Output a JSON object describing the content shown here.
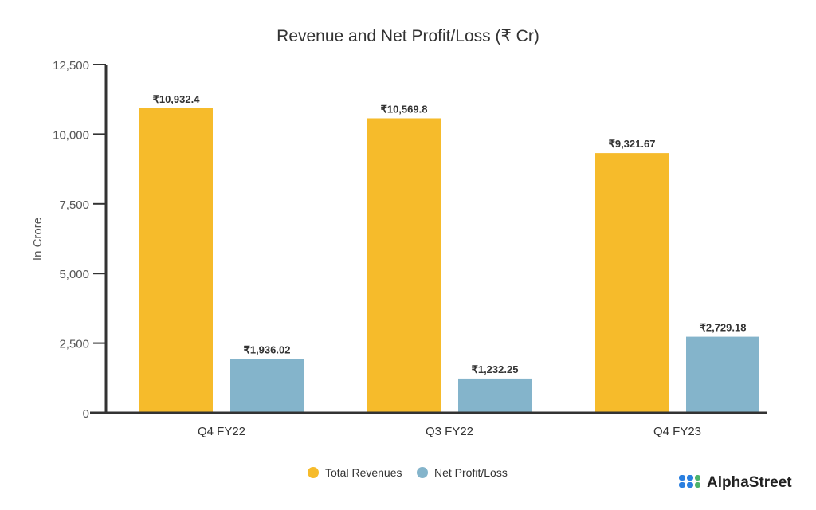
{
  "chart_data": {
    "type": "bar",
    "title": "Revenue and Net Profit/Loss (₹ Cr)",
    "xlabel": "",
    "ylabel": "In Crore",
    "ylim": [
      0,
      12500
    ],
    "yticks": [
      0,
      2500,
      5000,
      7500,
      10000,
      12500
    ],
    "ytick_labels": [
      "0",
      "2,500",
      "5,000",
      "7,500",
      "10,000",
      "12,500"
    ],
    "categories": [
      "Q4 FY22",
      "Q3 FY22",
      "Q4 FY23"
    ],
    "series": [
      {
        "name": "Total Revenues",
        "color": "#F6BB2B",
        "values": [
          10932.4,
          10569.8,
          9321.67
        ],
        "labels": [
          "₹10,932.4",
          "₹10,569.8",
          "₹9,321.67"
        ]
      },
      {
        "name": "Net Profit/Loss",
        "color": "#84B4CB",
        "values": [
          1936.02,
          1232.25,
          2729.18
        ],
        "labels": [
          "₹1,936.02",
          "₹1,232.25",
          "₹2,729.18"
        ]
      }
    ],
    "grid": false,
    "legend": "bottom-center"
  },
  "logo": {
    "text": "AlphaStreet"
  }
}
